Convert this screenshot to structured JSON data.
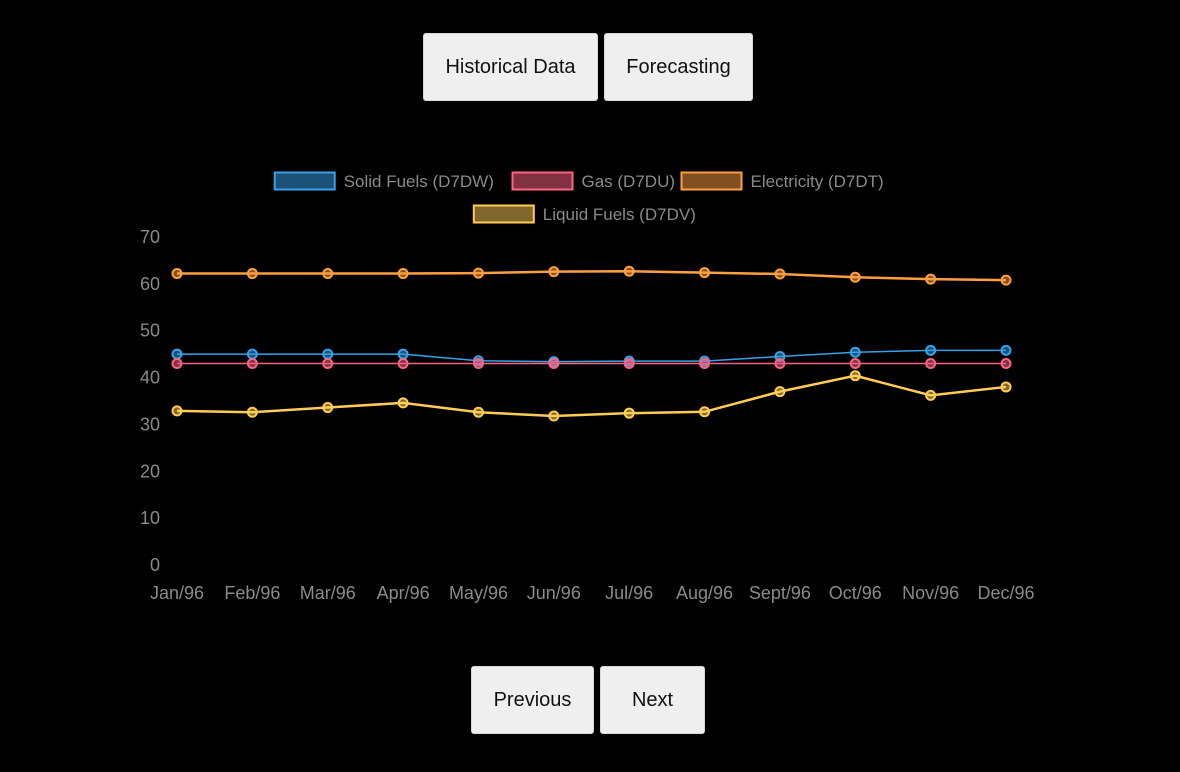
{
  "buttons": {
    "historical": "Historical Data",
    "forecasting": "Forecasting",
    "previous": "Previous",
    "next": "Next"
  },
  "chart_data": {
    "type": "line",
    "categories": [
      "Jan/96",
      "Feb/96",
      "Mar/96",
      "Apr/96",
      "May/96",
      "Jun/96",
      "Jul/96",
      "Aug/96",
      "Sept/96",
      "Oct/96",
      "Nov/96",
      "Dec/96"
    ],
    "ylim": [
      0,
      70
    ],
    "yticks": [
      0,
      10,
      20,
      30,
      40,
      50,
      60,
      70
    ],
    "grid": false,
    "legend_position": "top",
    "series": [
      {
        "name": "Solid Fuels (D7DW)",
        "color": "#36a2eb",
        "values": [
          45.0,
          45.0,
          45.0,
          45.0,
          43.6,
          43.4,
          43.5,
          43.5,
          44.5,
          45.4,
          45.8,
          45.8
        ]
      },
      {
        "name": "Gas (D7DU)",
        "color": "#ff6384",
        "values": [
          43.0,
          43.0,
          43.0,
          43.0,
          43.0,
          43.0,
          43.0,
          43.0,
          43.0,
          43.0,
          43.0,
          43.0
        ]
      },
      {
        "name": "Electricity (D7DT)",
        "color": "#ff9f40",
        "values": [
          62.2,
          62.2,
          62.2,
          62.2,
          62.3,
          62.6,
          62.7,
          62.4,
          62.1,
          61.4,
          61.0,
          60.8
        ]
      },
      {
        "name": "Liquid Fuels (D7DV)",
        "color": "#ffcd56",
        "values": [
          32.9,
          32.6,
          33.6,
          34.6,
          32.6,
          31.8,
          32.4,
          32.7,
          37.0,
          40.4,
          36.2,
          38.0
        ]
      }
    ]
  }
}
